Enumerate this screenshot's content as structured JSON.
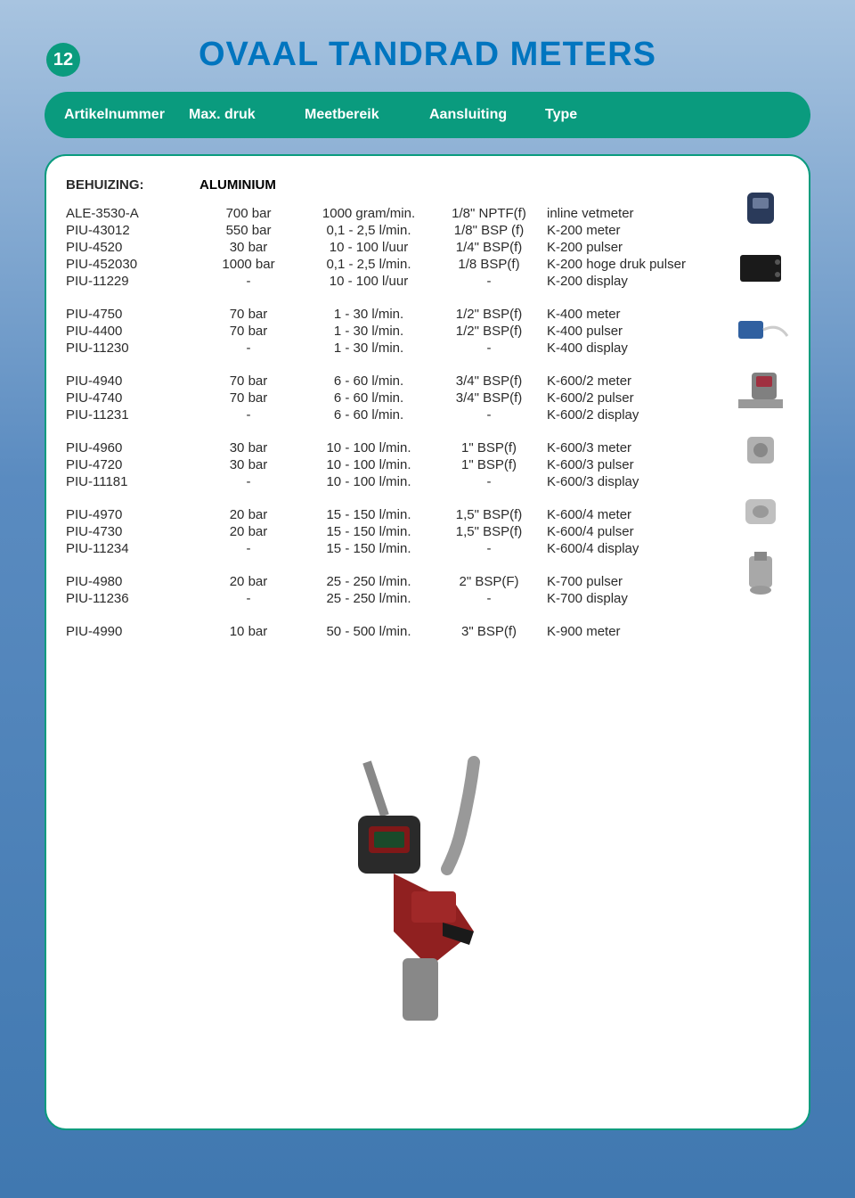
{
  "page_number": "12",
  "title": "OVAAL TANDRAD METERS",
  "colors": {
    "accent_green": "#0a9b7e",
    "title_blue": "#0075bf",
    "bg_top": "#a8c4e0",
    "bg_bottom": "#4078b0",
    "text": "#2b2b2b"
  },
  "header": {
    "artikelnummer": "Artikelnummer",
    "max_druk": "Max. druk",
    "meetbereik": "Meetbereik",
    "aansluiting": "Aansluiting",
    "type": "Type"
  },
  "section": {
    "behuizing_label": "BEHUIZING:",
    "behuizing_value": "ALUMINIUM"
  },
  "groups": [
    [
      {
        "art": "ALE-3530-A",
        "druk": "700 bar",
        "meet": "1000 gram/min.",
        "aans": "1/8\" NPTF(f)",
        "type": "inline vetmeter"
      },
      {
        "art": "PIU-43012",
        "druk": "550 bar",
        "meet": "0,1 - 2,5 l/min.",
        "aans": "1/8\" BSP (f)",
        "type": "K-200 meter"
      },
      {
        "art": "PIU-4520",
        "druk": "30 bar",
        "meet": "10 - 100 l/uur",
        "aans": "1/4\" BSP(f)",
        "type": "K-200 pulser"
      },
      {
        "art": "PIU-452030",
        "druk": "1000 bar",
        "meet": "0,1 - 2,5 l/min.",
        "aans": "1/8 BSP(f)",
        "type": "K-200 hoge druk pulser"
      },
      {
        "art": "PIU-11229",
        "druk": "-",
        "meet": "10 - 100 l/uur",
        "aans": "-",
        "type": "K-200 display"
      }
    ],
    [
      {
        "art": "PIU-4750",
        "druk": "70 bar",
        "meet": "1 - 30 l/min.",
        "aans": "1/2\" BSP(f)",
        "type": "K-400 meter"
      },
      {
        "art": "PIU-4400",
        "druk": "70 bar",
        "meet": "1 - 30 l/min.",
        "aans": "1/2\" BSP(f)",
        "type": "K-400 pulser"
      },
      {
        "art": "PIU-11230",
        "druk": "-",
        "meet": "1 - 30 l/min.",
        "aans": "-",
        "type": "K-400 display"
      }
    ],
    [
      {
        "art": "PIU-4940",
        "druk": "70 bar",
        "meet": "6 - 60 l/min.",
        "aans": "3/4\" BSP(f)",
        "type": "K-600/2 meter"
      },
      {
        "art": "PIU-4740",
        "druk": "70 bar",
        "meet": "6 - 60 l/min.",
        "aans": "3/4\" BSP(f)",
        "type": "K-600/2 pulser"
      },
      {
        "art": "PIU-11231",
        "druk": "-",
        "meet": "6 - 60 l/min.",
        "aans": "-",
        "type": "K-600/2 display"
      }
    ],
    [
      {
        "art": "PIU-4960",
        "druk": "30 bar",
        "meet": "10 - 100 l/min.",
        "aans": "1\" BSP(f)",
        "type": "K-600/3 meter"
      },
      {
        "art": "PIU-4720",
        "druk": "30 bar",
        "meet": "10 - 100 l/min.",
        "aans": "1\" BSP(f)",
        "type": "K-600/3 pulser"
      },
      {
        "art": "PIU-11181",
        "druk": "-",
        "meet": "10 - 100 l/min.",
        "aans": "-",
        "type": "K-600/3 display"
      }
    ],
    [
      {
        "art": "PIU-4970",
        "druk": "20 bar",
        "meet": "15 - 150 l/min.",
        "aans": "1,5\" BSP(f)",
        "type": "K-600/4 meter"
      },
      {
        "art": "PIU-4730",
        "druk": "20 bar",
        "meet": "15 - 150 l/min.",
        "aans": "1,5\" BSP(f)",
        "type": "K-600/4 pulser"
      },
      {
        "art": "PIU-11234",
        "druk": "-",
        "meet": "15 - 150 l/min.",
        "aans": "-",
        "type": "K-600/4 display"
      }
    ],
    [
      {
        "art": "PIU-4980",
        "druk": "20 bar",
        "meet": "25 - 250 l/min.",
        "aans": "2\" BSP(F)",
        "type": "K-700 pulser"
      },
      {
        "art": "PIU-11236",
        "druk": "-",
        "meet": "25 - 250 l/min.",
        "aans": "-",
        "type": "K-700 display"
      }
    ],
    [
      {
        "art": "PIU-4990",
        "druk": "10 bar",
        "meet": "50 - 500 l/min.",
        "aans": "3\" BSP(f)",
        "type": "K-900 meter"
      }
    ]
  ]
}
